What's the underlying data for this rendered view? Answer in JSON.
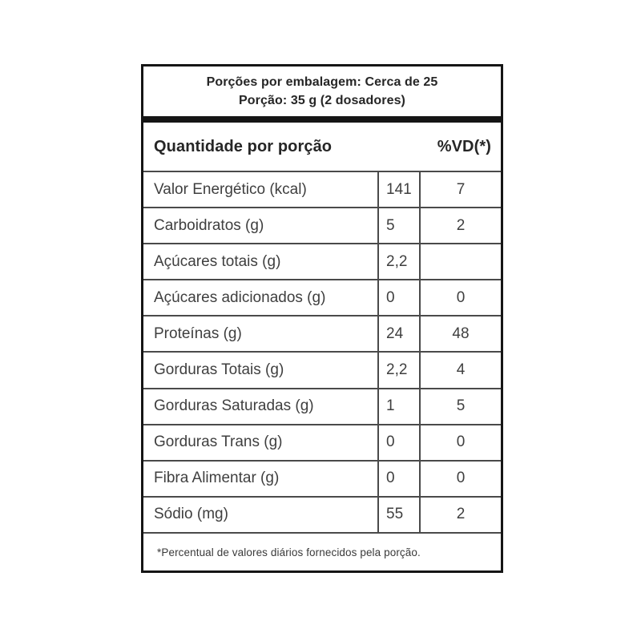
{
  "header": {
    "line1": "Porções por embalagem: Cerca de 25",
    "line2": "Porção: 35 g (2 dosadores)"
  },
  "columns": {
    "quantity_label": "Quantidade por porção",
    "vd_label": "%VD(*)"
  },
  "rows": [
    {
      "label": "Valor Energético (kcal)",
      "amount": "141",
      "vd": "7"
    },
    {
      "label": "Carboidratos (g)",
      "amount": "5",
      "vd": "2"
    },
    {
      "label": "Açúcares totais (g)",
      "amount": "2,2",
      "vd": ""
    },
    {
      "label": "Açúcares adicionados (g)",
      "amount": "0",
      "vd": "0"
    },
    {
      "label": "Proteínas (g)",
      "amount": "24",
      "vd": "48"
    },
    {
      "label": "Gorduras Totais (g)",
      "amount": "2,2",
      "vd": "4"
    },
    {
      "label": "Gorduras Saturadas (g)",
      "amount": "1",
      "vd": "5"
    },
    {
      "label": "Gorduras Trans (g)",
      "amount": "0",
      "vd": "0"
    },
    {
      "label": "Fibra Alimentar (g)",
      "amount": "0",
      "vd": "0"
    },
    {
      "label": "Sódio (mg)",
      "amount": "55",
      "vd": "2"
    }
  ],
  "footnote": "*Percentual de valores diários fornecidos pela porção.",
  "colors": {
    "background": "#ffffff",
    "outer_border": "#151515",
    "grid_line": "#4a4a4a",
    "heading_text": "#262626",
    "body_text": "#3f3f3f"
  }
}
